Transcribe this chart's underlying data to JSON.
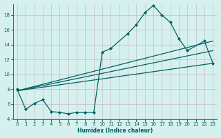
{
  "xlabel": "Humidex (Indice chaleur)",
  "bg_color": "#d6f0ee",
  "grid_color": "#c0b0c0",
  "line_color": "#006060",
  "xlim": [
    -0.5,
    23.5
  ],
  "ylim": [
    4,
    19.5
  ],
  "yticks": [
    4,
    6,
    8,
    10,
    12,
    14,
    16,
    18
  ],
  "xticks": [
    0,
    1,
    2,
    3,
    4,
    5,
    6,
    7,
    8,
    9,
    10,
    11,
    12,
    13,
    14,
    15,
    16,
    17,
    18,
    19,
    20,
    21,
    22,
    23
  ],
  "line1_x": [
    0,
    1,
    2,
    3,
    4,
    5,
    6,
    7,
    8,
    9,
    10,
    11,
    13,
    14,
    15,
    16,
    17,
    18,
    19,
    20,
    22,
    23
  ],
  "line1_y": [
    8.0,
    5.3,
    6.1,
    6.6,
    5.0,
    4.9,
    4.7,
    4.9,
    4.9,
    4.9,
    13.0,
    13.5,
    15.5,
    16.7,
    18.3,
    19.3,
    18.0,
    17.0,
    14.8,
    13.2,
    14.5,
    11.5
  ],
  "line2_x": [
    0,
    23
  ],
  "line2_y": [
    7.8,
    11.5
  ],
  "line3_x": [
    0,
    23
  ],
  "line3_y": [
    7.8,
    14.5
  ],
  "line4_x": [
    0,
    23
  ],
  "line4_y": [
    7.8,
    13.2
  ],
  "marker_size": 2.5
}
